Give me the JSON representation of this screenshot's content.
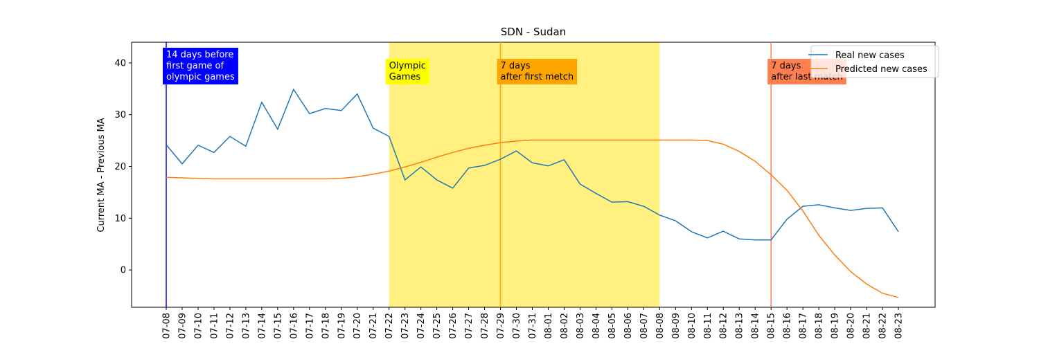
{
  "chart_data": {
    "type": "line",
    "title": "SDN - Sudan",
    "y_label": "Current MA - Previous MA",
    "categories": [
      "07-08",
      "07-09",
      "07-10",
      "07-11",
      "07-12",
      "07-13",
      "07-14",
      "07-15",
      "07-16",
      "07-17",
      "07-18",
      "07-19",
      "07-20",
      "07-21",
      "07-22",
      "07-23",
      "07-24",
      "07-25",
      "07-26",
      "07-27",
      "07-28",
      "07-29",
      "07-30",
      "07-31",
      "08-01",
      "08-02",
      "08-03",
      "08-04",
      "08-05",
      "08-06",
      "08-07",
      "08-08",
      "08-09",
      "08-10",
      "08-11",
      "08-12",
      "08-13",
      "08-14",
      "08-15",
      "08-16",
      "08-17",
      "08-18",
      "08-19",
      "08-20",
      "08-21",
      "08-22",
      "08-23"
    ],
    "series": [
      {
        "name": "Real new cases",
        "color": "#1f77b4",
        "values": [
          24.2,
          20.5,
          24.1,
          22.7,
          25.8,
          23.9,
          32.4,
          27.2,
          34.9,
          30.2,
          31.2,
          30.8,
          34.0,
          27.4,
          25.8,
          17.4,
          19.9,
          17.4,
          15.8,
          19.7,
          20.2,
          21.4,
          23.0,
          20.7,
          20.1,
          21.3,
          16.6,
          14.8,
          13.1,
          13.2,
          12.3,
          10.6,
          9.5,
          7.4,
          6.2,
          7.5,
          6.0,
          5.8,
          5.8,
          9.8,
          12.3,
          12.6,
          12.0,
          11.5,
          11.9,
          12.0,
          7.4
        ]
      },
      {
        "name": "Predicted new cases",
        "color": "#ff7f0e",
        "values": [
          17.9,
          17.8,
          17.7,
          17.6,
          17.6,
          17.6,
          17.6,
          17.6,
          17.6,
          17.6,
          17.6,
          17.7,
          18.0,
          18.5,
          19.1,
          19.9,
          20.8,
          21.8,
          22.7,
          23.5,
          24.1,
          24.6,
          24.9,
          25.1,
          25.1,
          25.1,
          25.1,
          25.1,
          25.1,
          25.1,
          25.1,
          25.1,
          25.1,
          25.1,
          25.0,
          24.3,
          22.9,
          21.0,
          18.4,
          15.4,
          11.4,
          6.7,
          2.9,
          -0.3,
          -2.7,
          -4.5,
          -5.3
        ]
      }
    ],
    "ylim": [
      -7.2,
      44
    ],
    "yticks": [
      0,
      10,
      20,
      30,
      40
    ],
    "span": {
      "from": "07-22",
      "to": "08-08",
      "color": "#fff080"
    },
    "annotations": [
      {
        "x": "07-08",
        "color": "#0000ff",
        "text_color": "#ffffff",
        "line": true,
        "lines": [
          "14 days before",
          "first game of",
          "olympic games"
        ]
      },
      {
        "x": "07-22",
        "color": "#ffff00",
        "text_color": "#000000",
        "line": false,
        "lines": [
          "Olympic",
          "Games"
        ]
      },
      {
        "x": "07-29",
        "color": "#ffa500",
        "text_color": "#000000",
        "line": true,
        "lines": [
          "7 days",
          "after first metch"
        ]
      },
      {
        "x": "08-15",
        "color": "#ff7f50",
        "text_color": "#000000",
        "line": true,
        "lines": [
          "7 days",
          "after last match"
        ]
      }
    ],
    "legend": "upper right"
  }
}
